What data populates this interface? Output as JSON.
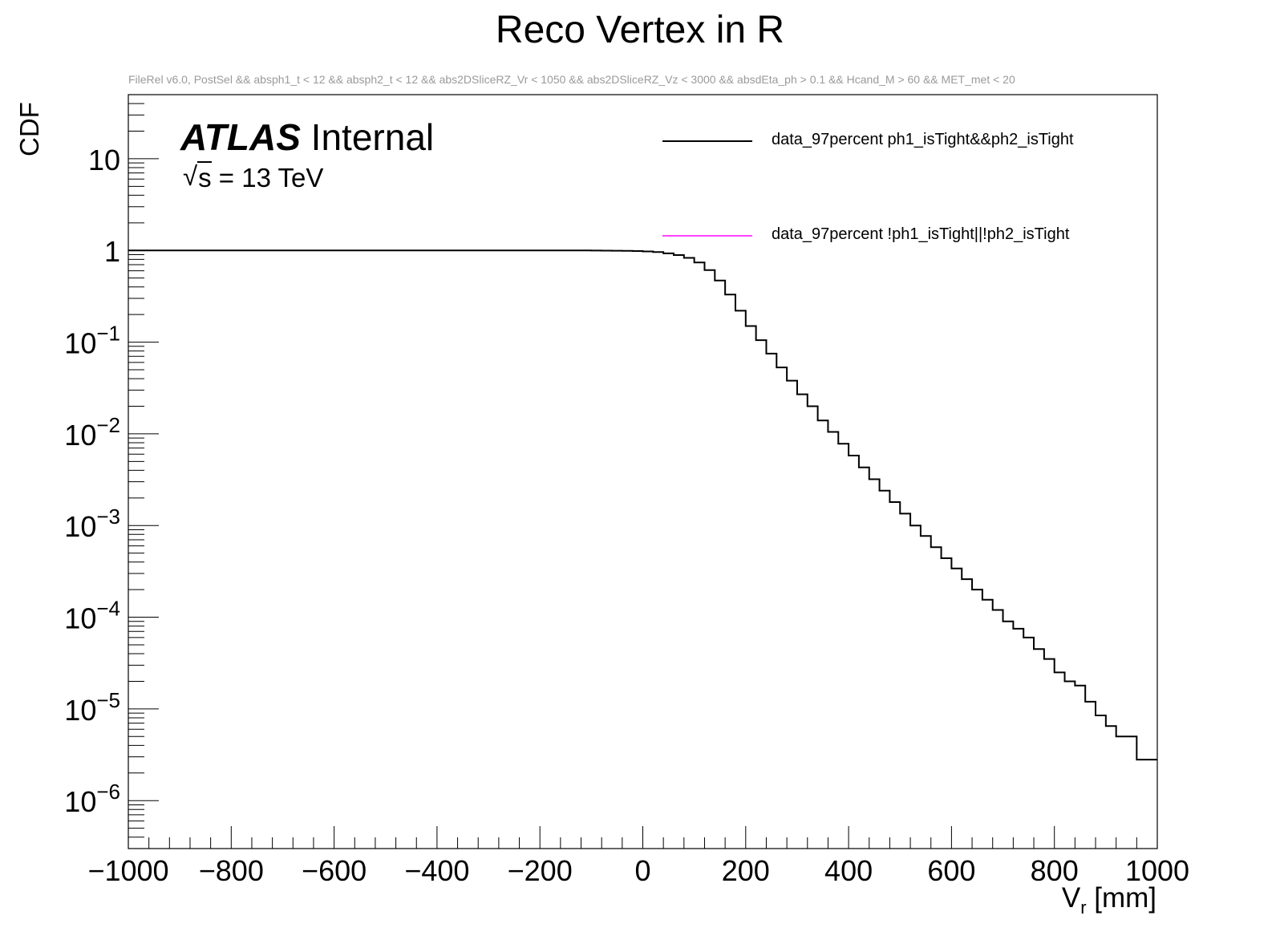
{
  "title": "Reco Vertex in R",
  "subtitle": "FileRel v6.0, PostSel &&  absph1_t < 12 && absph2_t < 12 && abs2DSliceRZ_Vr < 1050 && abs2DSliceRZ_Vz < 3000 && absdEta_ph > 0.1 && Hcand_M > 60 && MET_met < 20",
  "atlas_label": {
    "bold": "ATLAS",
    "rest": " Internal"
  },
  "energy_label": {
    "sqrt_sym": "√",
    "var": "s",
    "rest": " = 13 TeV"
  },
  "chart_data": {
    "type": "line",
    "title": "Reco Vertex in R",
    "xlabel": "V_r [mm]",
    "xlabel_main": "V",
    "xlabel_sub": "r",
    "xlabel_unit": " [mm]",
    "ylabel": "CDF",
    "xlim": [
      -1000,
      1000
    ],
    "ylim": [
      3e-07,
      50
    ],
    "yscale": "log",
    "grid": false,
    "legend_position": "top-right",
    "x_ticks": [
      "−1000",
      "−800",
      "−600",
      "−400",
      "−200",
      "0",
      "200",
      "400",
      "600",
      "800",
      "1000"
    ],
    "y_ticks": [
      {
        "base": "10",
        "exp": "−6",
        "value": 1e-06
      },
      {
        "base": "10",
        "exp": "−5",
        "value": 1e-05
      },
      {
        "base": "10",
        "exp": "−4",
        "value": 0.0001
      },
      {
        "base": "10",
        "exp": "−3",
        "value": 0.001
      },
      {
        "base": "10",
        "exp": "−2",
        "value": 0.01
      },
      {
        "base": "10",
        "exp": "−1",
        "value": 0.1
      },
      {
        "base": "1",
        "exp": "",
        "value": 1
      },
      {
        "base": "10",
        "exp": "",
        "value": 10
      }
    ],
    "bin_width": 20,
    "x_start": -1000,
    "series": [
      {
        "name": "data_97percent ph1_isTight&&ph2_isTight",
        "color": "#000000",
        "values": [
          1.0,
          0.9995,
          0.999,
          0.998,
          0.996,
          0.993,
          0.99,
          0.985,
          0.975,
          0.96,
          0.93,
          0.89,
          0.83,
          0.74,
          0.61,
          0.47,
          0.33,
          0.22,
          0.15,
          0.105,
          0.075,
          0.053,
          0.038,
          0.027,
          0.02,
          0.014,
          0.0105,
          0.0078,
          0.0058,
          0.0043,
          0.0032,
          0.0024,
          0.0018,
          0.00135,
          0.001,
          0.00077,
          0.00058,
          0.00044,
          0.00034,
          0.00026,
          0.0002,
          0.000155,
          0.00012,
          9e-05,
          7.5e-05,
          6e-05,
          4.5e-05,
          3.5e-05,
          2.5e-05,
          2e-05,
          1.8e-05,
          1.2e-05,
          8.5e-06,
          6.5e-06,
          5e-06,
          5e-06,
          2.8e-06,
          2.8e-06
        ],
        "values_note": ""
      },
      {
        "name": "data_97percent !ph1_isTight||!ph2_isTight",
        "color": "#ff44ff",
        "values": []
      }
    ]
  }
}
